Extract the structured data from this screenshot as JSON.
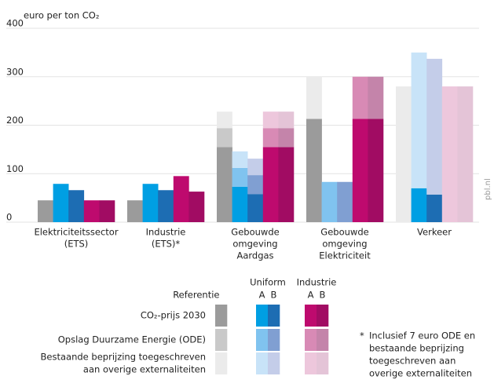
{
  "chart_data": {
    "type": "bar",
    "y_label": "euro per ton CO₂",
    "ylim": [
      0,
      400
    ],
    "yticks": [
      0,
      100,
      200,
      300,
      400
    ],
    "grid": true,
    "categories": [
      [
        "Elektriciteitssector",
        "(ETS)"
      ],
      [
        "Industrie",
        "(ETS)*"
      ],
      [
        "Gebouwde",
        "omgeving",
        "Aardgas"
      ],
      [
        "Gebouwde",
        "omgeving",
        "Elektriciteit"
      ],
      [
        "Verkeer"
      ]
    ],
    "components": [
      "CO₂-prijs 2030",
      "Opslag Duurzame Energie (ODE)",
      [
        "Bestaande beprijzing toegeschreven",
        "aan overige externaliteiten"
      ]
    ],
    "series": [
      {
        "name": "Referentie",
        "segments": [
          {
            "color": "#9b9b9b",
            "values": [
              45,
              45,
              155,
              213,
              0
            ]
          },
          {
            "color": "#c9c9c9",
            "values": [
              0,
              0,
              39,
              0,
              0
            ]
          },
          {
            "color": "#ebebeb",
            "values": [
              0,
              0,
              34,
              87,
              280
            ]
          }
        ]
      },
      {
        "name": "Uniform",
        "variants": [
          {
            "name": "A",
            "segments": [
              {
                "color": "#009fe3",
                "values": [
                  79,
                  79,
                  73,
                  0,
                  70
                ]
              },
              {
                "color": "#80c3ef",
                "values": [
                  0,
                  0,
                  39,
                  83,
                  0
                ]
              },
              {
                "color": "#c8e3f8",
                "values": [
                  0,
                  0,
                  34,
                  0,
                  280
                ]
              }
            ]
          },
          {
            "name": "B",
            "segments": [
              {
                "color": "#1d6db3",
                "values": [
                  66,
                  66,
                  58,
                  0,
                  57
                ]
              },
              {
                "color": "#809fd2",
                "values": [
                  0,
                  0,
                  39,
                  83,
                  0
                ]
              },
              {
                "color": "#c4cde9",
                "values": [
                  0,
                  0,
                  34,
                  0,
                  280
                ]
              }
            ]
          }
        ]
      },
      {
        "name": "Industrie",
        "variants": [
          {
            "name": "A",
            "segments": [
              {
                "color": "#be0a6e",
                "values": [
                  45,
                  95,
                  155,
                  213,
                  0
                ]
              },
              {
                "color": "#d88ab5",
                "values": [
                  0,
                  0,
                  39,
                  87,
                  0
                ]
              },
              {
                "color": "#edc7dc",
                "values": [
                  0,
                  0,
                  34,
                  0,
                  280
                ]
              }
            ]
          },
          {
            "name": "B",
            "segments": [
              {
                "color": "#a10c63",
                "values": [
                  45,
                  63,
                  155,
                  213,
                  0
                ]
              },
              {
                "color": "#c484aa",
                "values": [
                  0,
                  0,
                  39,
                  87,
                  0
                ]
              },
              {
                "color": "#e4c4d7",
                "values": [
                  0,
                  0,
                  34,
                  0,
                  280
                ]
              }
            ]
          }
        ]
      }
    ],
    "footnote": [
      "*",
      "Inclusief 7 euro ODE en",
      "bestaande beprijzing",
      "toegeschreven aan",
      "overige externaliteiten"
    ],
    "watermark": "pbl.nl"
  }
}
